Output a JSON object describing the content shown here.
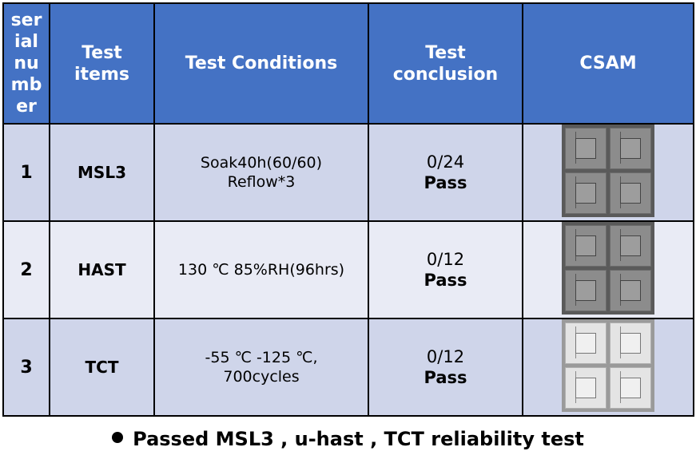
{
  "table": {
    "headers": {
      "serial": "ser\nial\nnu\nmb\ner",
      "items": "Test\nitems",
      "conditions": "Test Conditions",
      "conclusion": "Test\nconclusion",
      "csam": "CSAM"
    },
    "rows": [
      {
        "serial": "1",
        "item": "MSL3",
        "condition_line1": "Soak40h(60/60)",
        "condition_line2": "Reflow*3",
        "ratio": "0/24",
        "result": "Pass",
        "csam_tone": "dark"
      },
      {
        "serial": "2",
        "item": "HAST",
        "condition_line1": "130 ℃ 85%RH(96hrs)",
        "condition_line2": "",
        "ratio": "0/12",
        "result": "Pass",
        "csam_tone": "dark"
      },
      {
        "serial": "3",
        "item": "TCT",
        "condition_line1": "-55 ℃ -125 ℃,",
        "condition_line2": "700cycles",
        "ratio": "0/12",
        "result": "Pass",
        "csam_tone": "light"
      }
    ]
  },
  "footer": {
    "bullet_icon": "bullet-icon",
    "text": "Passed MSL3 , u-hast , TCT reliability test"
  },
  "colors": {
    "header_bg": "#4472c4",
    "row_dark": "#cfd5ea",
    "row_light": "#e9ebf5"
  }
}
